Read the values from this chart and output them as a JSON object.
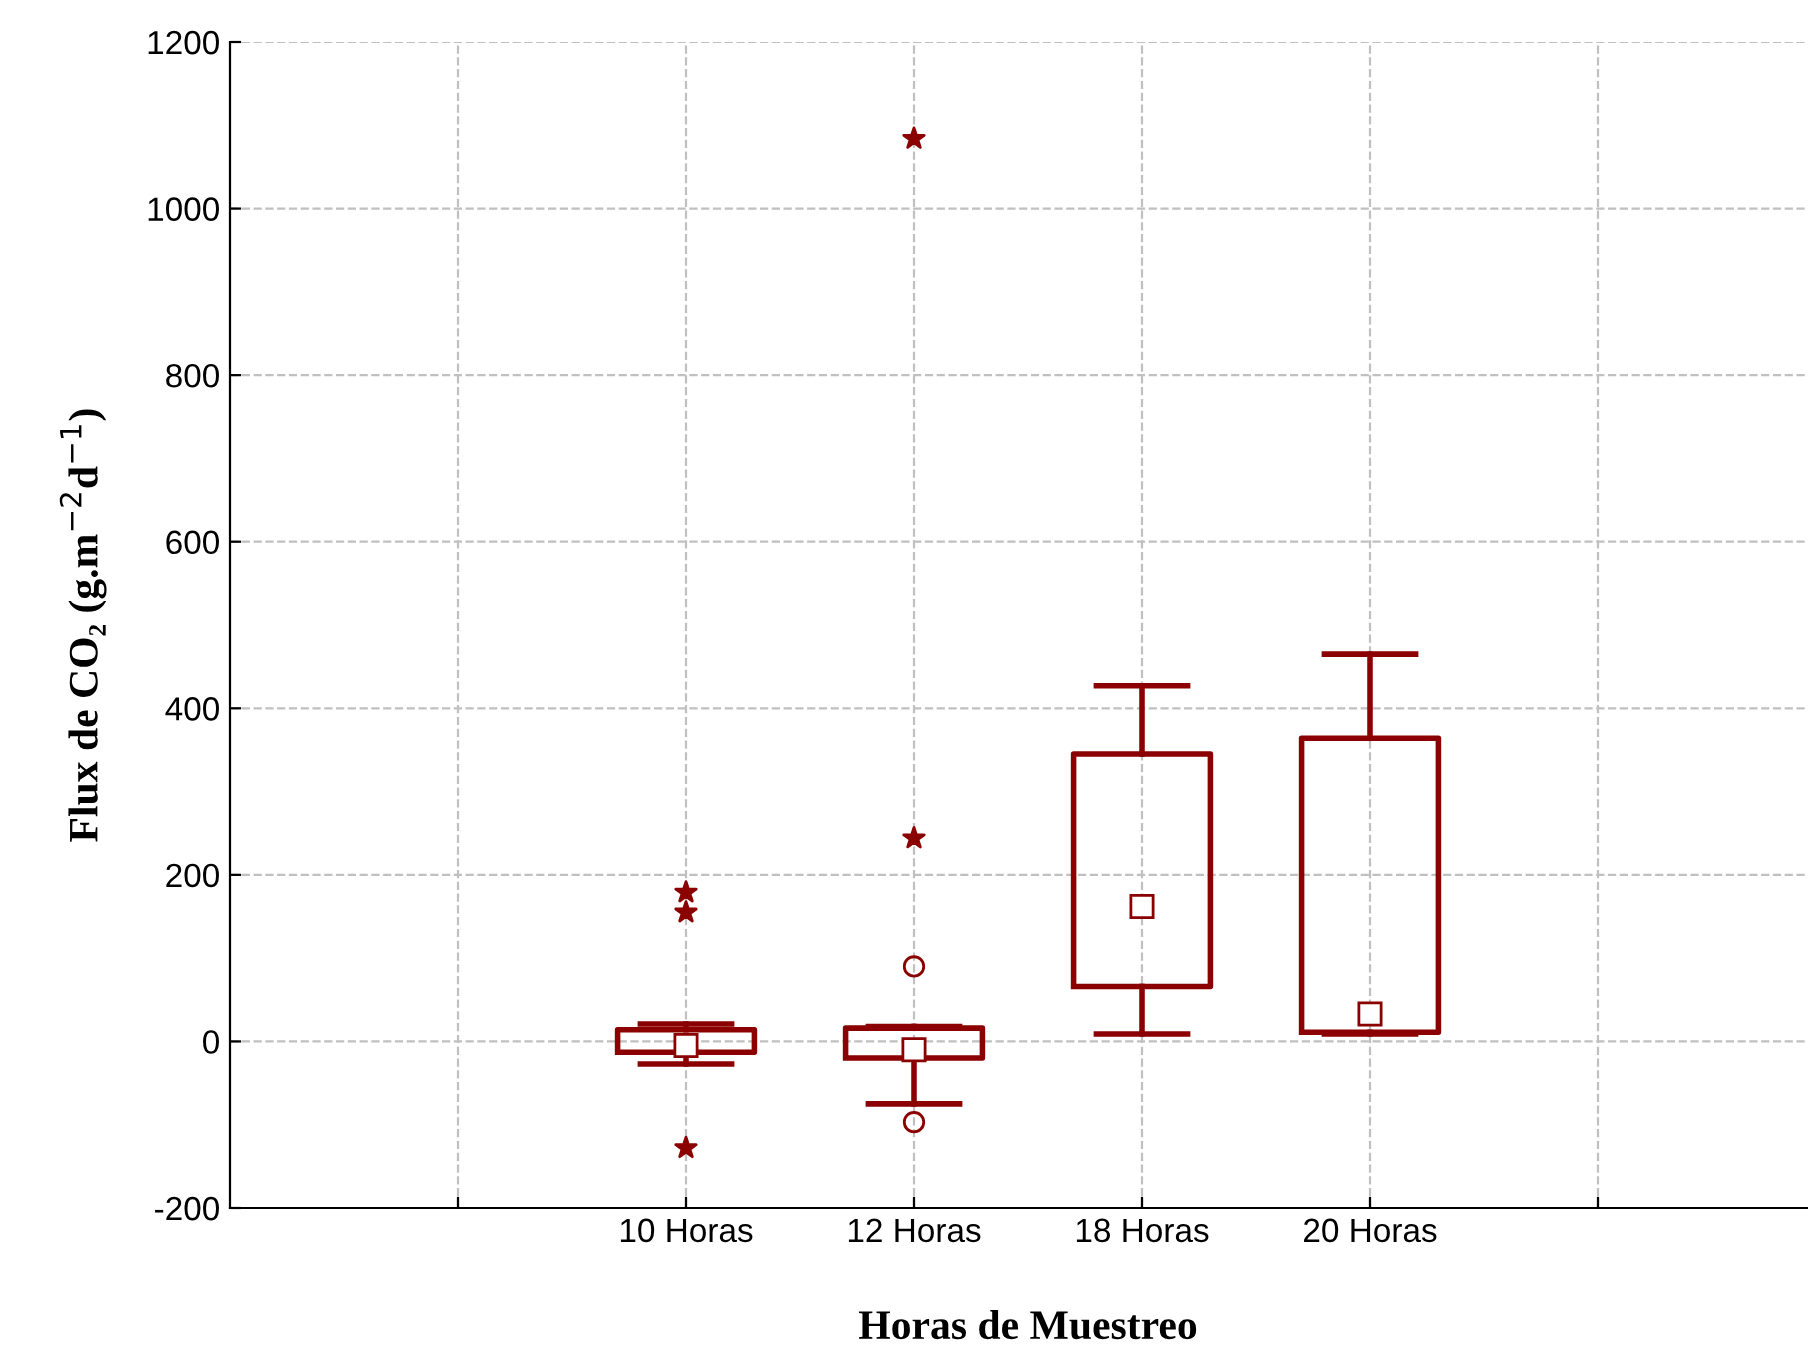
{
  "chart_data": {
    "type": "box",
    "xlabel": "Horas de Muestreo",
    "ylabel": "Flux de CO₂ (g.m$^{−2}$d$^{−1}$)",
    "categories": [
      null,
      "10 Horas",
      "12 Horas",
      "18 Horas",
      "20 Horas",
      null
    ],
    "boxes": [
      null,
      {
        "low": -27,
        "q1": -13,
        "median": -5,
        "q3": 14,
        "high": 21
      },
      {
        "low": -75,
        "q1": -20,
        "median": -10,
        "q3": 16,
        "high": 18,
        "outliers": [
          90,
          -97
        ]
      },
      {
        "low": 9,
        "q1": 66,
        "median": 162,
        "q3": 345,
        "high": 427
      },
      {
        "low": 9,
        "q1": 11,
        "median": 33,
        "q3": 364,
        "high": 465
      },
      null
    ],
    "color": "#8b0000",
    "series": [
      {
        "type": "scatter",
        "marker": "star",
        "color": "#8b0000",
        "x": [
          "10 Horas",
          "10 Horas",
          "10 Horas",
          "12 Horas",
          "12 Horas"
        ],
        "values": [
          179,
          155,
          -128,
          244,
          1084
        ]
      }
    ],
    "ylim": [
      -200,
      1200
    ],
    "yticks": [
      -200,
      0,
      200,
      400,
      600,
      800,
      1000,
      1200
    ],
    "grid": true
  }
}
